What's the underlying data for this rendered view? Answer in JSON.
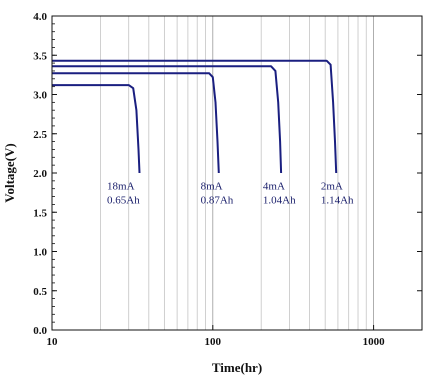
{
  "chart_data": {
    "type": "line",
    "title": "",
    "xlabel": "Time(hr)",
    "ylabel": "Voltage(V)",
    "xscale": "log",
    "xlim": [
      10,
      2000
    ],
    "ylim": [
      0.0,
      4.0
    ],
    "grid": "vertical-log",
    "line_color": "#1a1f80",
    "x_ticks": [
      {
        "value": 10,
        "label": "10"
      },
      {
        "value": 100,
        "label": "100"
      },
      {
        "value": 1000,
        "label": "1000"
      }
    ],
    "y_ticks": [
      {
        "value": 0.0,
        "label": "0.0"
      },
      {
        "value": 0.5,
        "label": "0.5"
      },
      {
        "value": 1.0,
        "label": "1.0"
      },
      {
        "value": 1.5,
        "label": "1.5"
      },
      {
        "value": 2.0,
        "label": "2.0"
      },
      {
        "value": 2.5,
        "label": "2.5"
      },
      {
        "value": 3.0,
        "label": "3.0"
      },
      {
        "value": 3.5,
        "label": "3.5"
      },
      {
        "value": 4.0,
        "label": "4.0"
      }
    ],
    "series": [
      {
        "x": [
          10,
          30,
          32,
          33.5,
          34.5,
          35
        ],
        "y": [
          3.12,
          3.12,
          3.08,
          2.8,
          2.3,
          2.0
        ]
      },
      {
        "x": [
          10,
          95,
          100,
          104,
          107,
          109
        ],
        "y": [
          3.27,
          3.27,
          3.22,
          2.9,
          2.4,
          2.0
        ]
      },
      {
        "x": [
          10,
          230,
          245,
          255,
          262,
          266
        ],
        "y": [
          3.36,
          3.36,
          3.3,
          2.9,
          2.4,
          2.0
        ]
      },
      {
        "x": [
          10,
          510,
          540,
          560,
          575,
          585
        ],
        "y": [
          3.43,
          3.43,
          3.38,
          2.9,
          2.4,
          2.0
        ]
      }
    ],
    "annotations": [
      {
        "x": 22,
        "y": 1.84,
        "lines": [
          "18mA",
          "0.65Ah"
        ]
      },
      {
        "x": 84,
        "y": 1.84,
        "lines": [
          "8mA",
          "0.87Ah"
        ]
      },
      {
        "x": 205,
        "y": 1.84,
        "lines": [
          "4mA",
          "1.04Ah"
        ]
      },
      {
        "x": 470,
        "y": 1.84,
        "lines": [
          "2mA",
          "1.14Ah"
        ]
      }
    ]
  }
}
